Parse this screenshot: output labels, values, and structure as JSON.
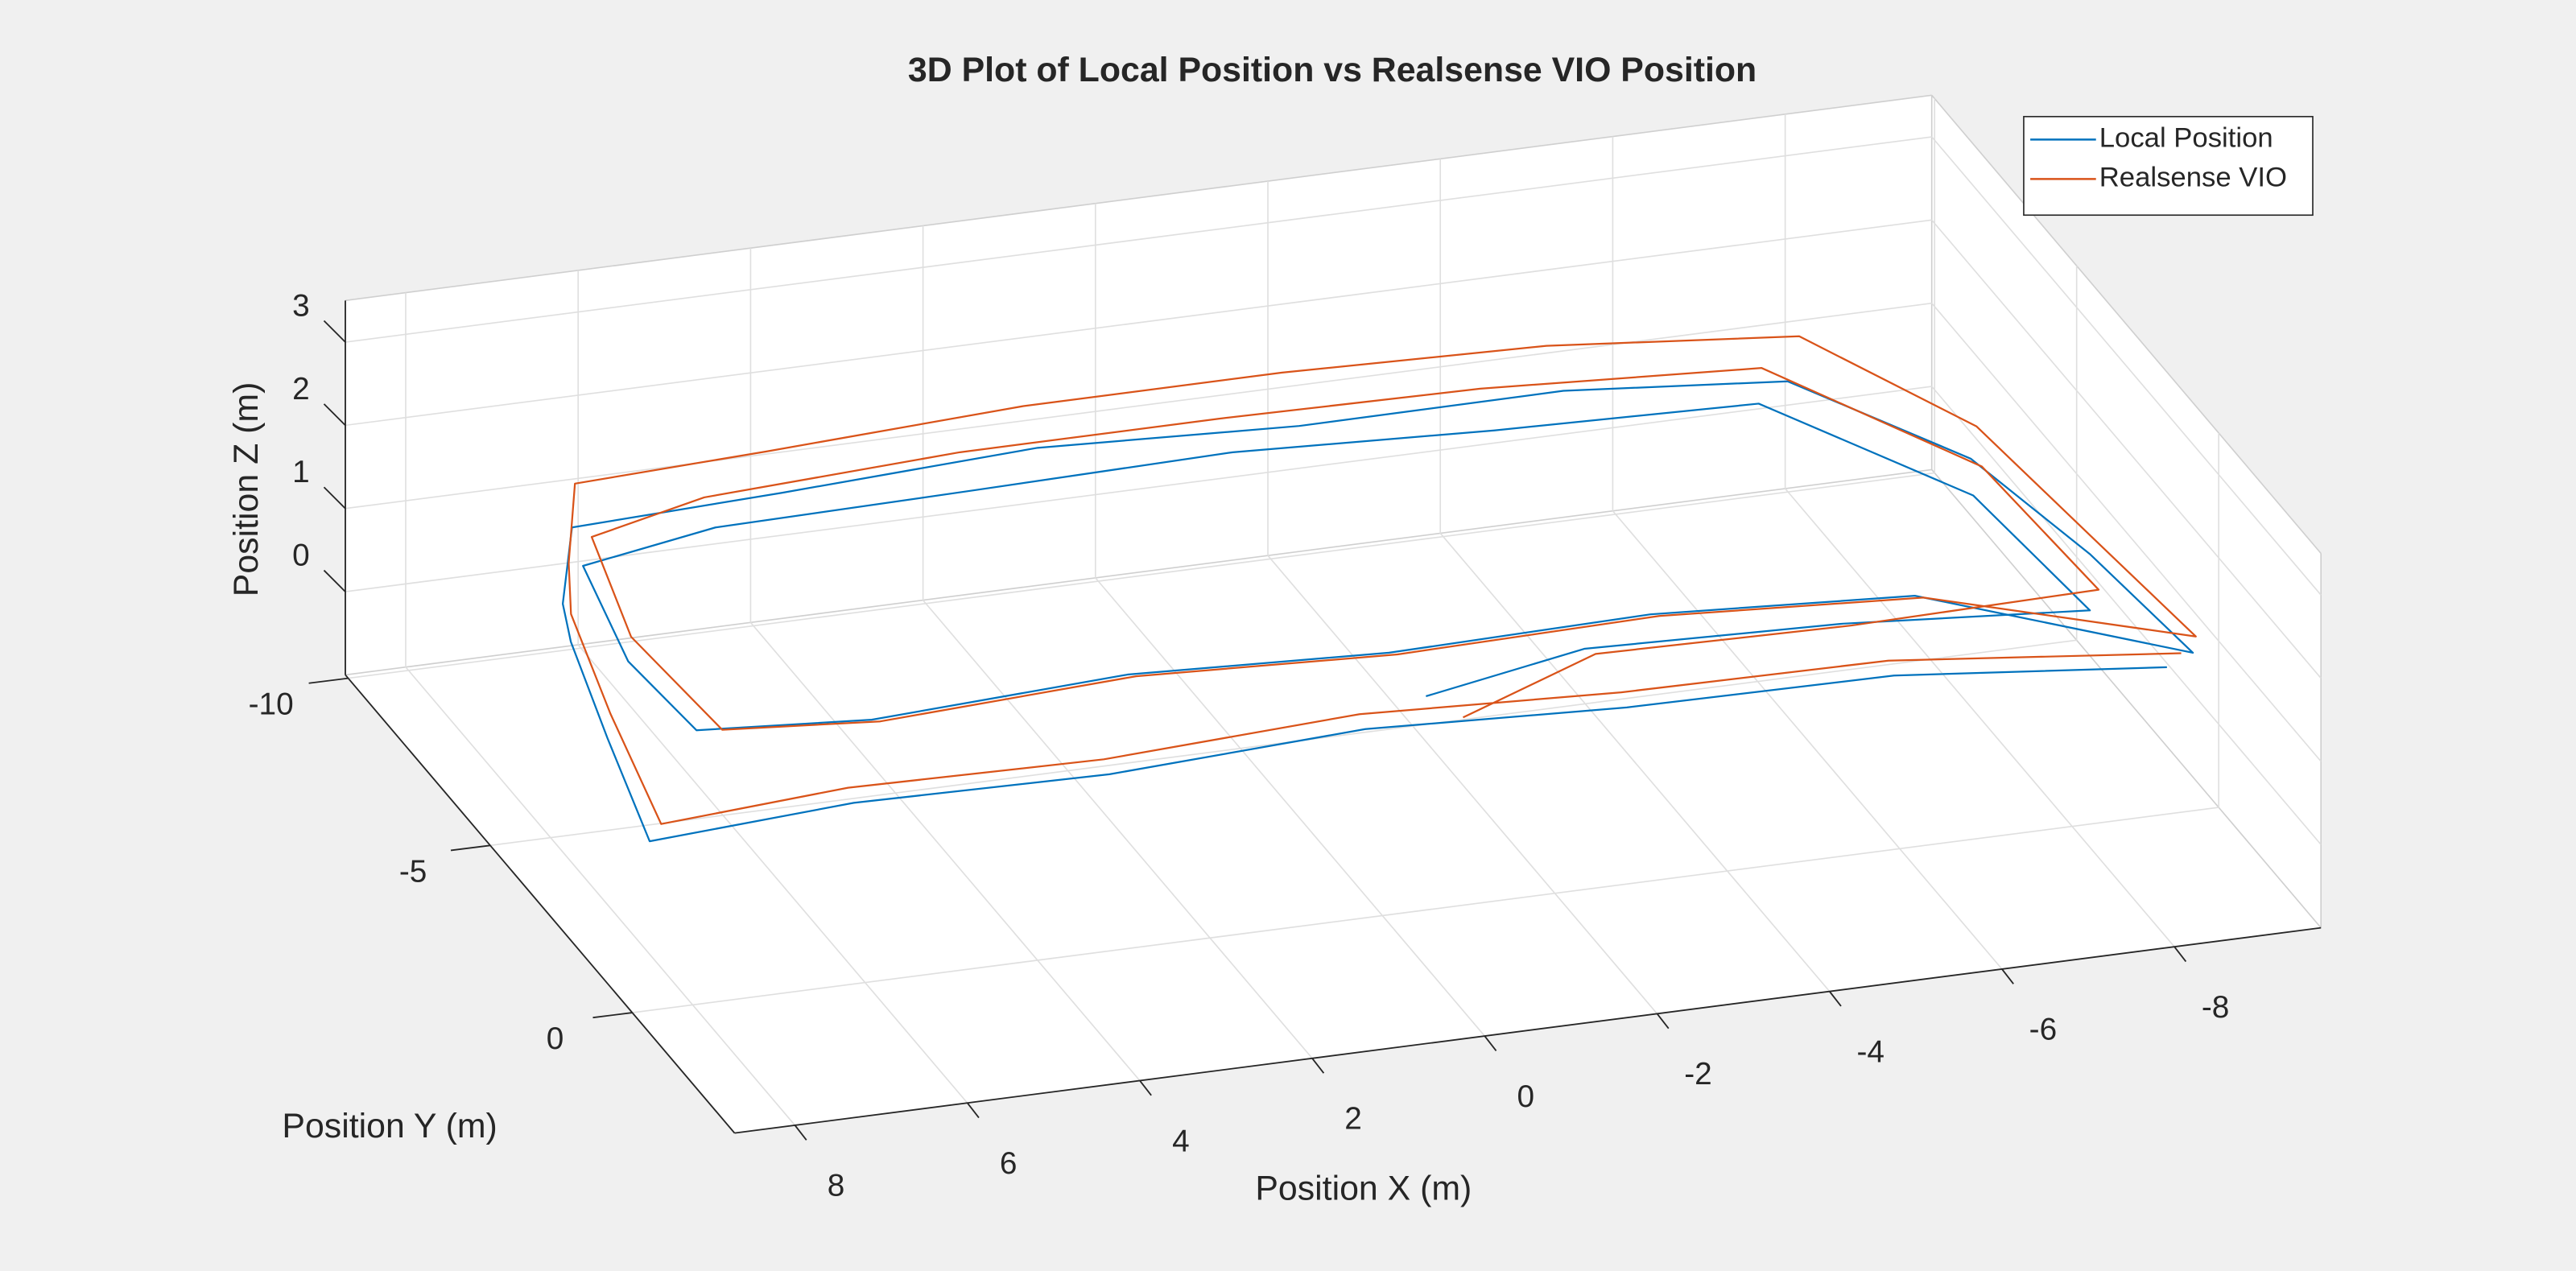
{
  "chart_data": {
    "type": "line3d",
    "title": "3D Plot of Local Position vs Realsense VIO Position",
    "xlabel": "Position X (m)",
    "ylabel": "Position Y (m)",
    "zlabel": "Position Z (m)",
    "xlim": [
      -9.7,
      8.7
    ],
    "ylim": [
      -10.1,
      3.6
    ],
    "zlim": [
      -1,
      3.5
    ],
    "xticks": [
      -8,
      -6,
      -4,
      -2,
      0,
      2,
      4,
      6,
      8
    ],
    "yticks": [
      -10,
      -5,
      0
    ],
    "zticks": [
      0,
      1,
      2,
      3
    ],
    "grid": true,
    "legend": "northeast",
    "series": [
      {
        "name": "Local Position",
        "color": "#0072BD",
        "x": [
          -9.0,
          -6,
          -3,
          0,
          3,
          6,
          8.4,
          8.0,
          7.6,
          7.2,
          6.5,
          4,
          1,
          -2,
          -5,
          -7.5,
          -8.8,
          -9.2,
          -9.4,
          -7,
          -4,
          -1,
          2,
          5,
          7.0,
          7.1,
          6.8,
          5,
          2,
          -1,
          -4,
          -7,
          -8.5,
          -8.7,
          -6,
          -3,
          -1
        ],
        "y": [
          0.3,
          -0.2,
          -0.5,
          -0.6,
          -0.5,
          -0.4,
          -0.3,
          -3,
          -5.5,
          -7,
          -8.8,
          -9.0,
          -9.1,
          -9.0,
          -8.8,
          -8.5,
          -6,
          -3,
          0.0,
          -2.5,
          -2.7,
          -2.8,
          -2.9,
          -2.8,
          -2.9,
          -5,
          -7.5,
          -8.3,
          -8.4,
          -8.3,
          -8.2,
          -8.0,
          -5,
          -1.5,
          -2.0,
          -2.0,
          -1.5
        ],
        "z": [
          0.9,
          1.0,
          0.9,
          1.0,
          0.9,
          1.0,
          0.9,
          1.0,
          1.1,
          0.9,
          1.0,
          1.0,
          1.1,
          1.0,
          1.1,
          1.0,
          0.9,
          0.9,
          0.9,
          0.9,
          1.0,
          0.9,
          1.0,
          0.9,
          1.0,
          1.0,
          1.1,
          1.0,
          1.0,
          1.1,
          1.0,
          1.0,
          0.9,
          0.9,
          0.9,
          1.0,
          0.9
        ]
      },
      {
        "name": "Realsense VIO",
        "color": "#D95319",
        "x": [
          -9.2,
          -6,
          -3,
          0,
          3,
          6,
          8.2,
          7.9,
          7.5,
          7.0,
          6.3,
          4,
          1,
          -2,
          -5,
          -7.8,
          -9.0,
          -9.3,
          -9.5,
          -7,
          -4,
          -1,
          2,
          5,
          6.8,
          7.0,
          6.6,
          5,
          2,
          -1,
          -4,
          -7.2,
          -8.7,
          -8.9,
          -6,
          -3,
          -1.2
        ],
        "y": [
          0.2,
          -0.4,
          -0.7,
          -0.8,
          -0.7,
          -0.6,
          -0.5,
          -3.2,
          -5.8,
          -7.4,
          -9.3,
          -9.5,
          -9.6,
          -9.6,
          -9.4,
          -9.0,
          -6.4,
          -3.2,
          -0.2,
          -2.2,
          -2.4,
          -2.5,
          -2.6,
          -2.5,
          -2.6,
          -5.2,
          -7.8,
          -8.7,
          -8.8,
          -8.8,
          -8.7,
          -8.5,
          -5.3,
          -1.8,
          -1.7,
          -1.6,
          -0.8
        ],
        "z": [
          1.0,
          1.1,
          1.0,
          1.1,
          1.0,
          1.1,
          1.0,
          1.2,
          1.3,
          1.2,
          1.3,
          1.3,
          1.4,
          1.4,
          1.4,
          1.3,
          1.1,
          1.0,
          1.0,
          1.0,
          1.1,
          1.0,
          1.1,
          1.0,
          1.1,
          1.2,
          1.3,
          1.2,
          1.3,
          1.3,
          1.3,
          1.2,
          1.1,
          1.0,
          1.0,
          1.1,
          0.9
        ]
      }
    ]
  }
}
